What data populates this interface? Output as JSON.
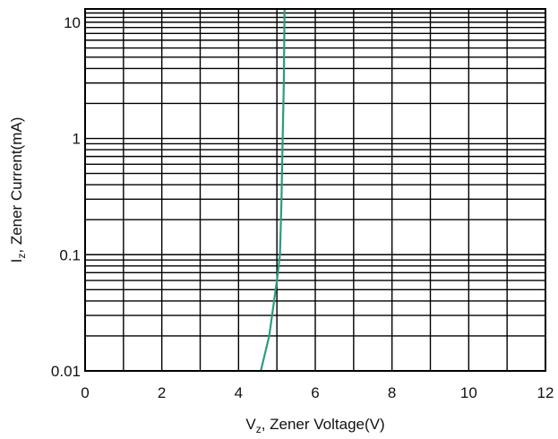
{
  "chart_data": {
    "type": "line",
    "title": "",
    "xlabel": {
      "main": "V",
      "sub": "z",
      "rest": ", Zener Voltage(V)"
    },
    "ylabel": {
      "main": "I",
      "sub": "z",
      "rest": ", Zener Current(mA)"
    },
    "xlim": [
      0,
      12
    ],
    "ylim": [
      0.01,
      13
    ],
    "yscale": "log",
    "grid": true,
    "x_ticks": [
      0,
      2,
      4,
      6,
      8,
      10,
      12
    ],
    "x_tick_labels": [
      "0",
      "2",
      "4",
      "6",
      "8",
      "10",
      "12"
    ],
    "y_ticks": [
      0.01,
      0.1,
      1,
      10
    ],
    "y_tick_labels": [
      "0.01",
      "0.1",
      "1",
      "10"
    ],
    "series": [
      {
        "name": "",
        "color": "#2a9d7f",
        "points": [
          {
            "x": 4.58,
            "y": 0.01
          },
          {
            "x": 4.8,
            "y": 0.02
          },
          {
            "x": 5.0,
            "y": 0.06
          },
          {
            "x": 5.08,
            "y": 0.1
          },
          {
            "x": 5.12,
            "y": 0.3
          },
          {
            "x": 5.15,
            "y": 1
          },
          {
            "x": 5.18,
            "y": 3
          },
          {
            "x": 5.2,
            "y": 13
          }
        ]
      }
    ]
  }
}
